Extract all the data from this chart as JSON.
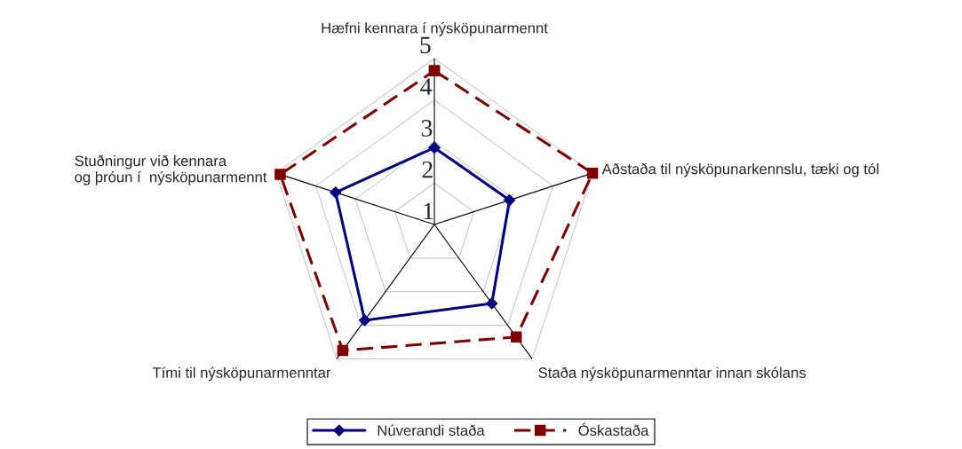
{
  "chart_data": {
    "type": "radar",
    "categories": [
      "Hæfni kennara í nýsköpunarmennt",
      "Aðstaða til nýsköpunarkennslu, tæki og tól",
      "Staða nýsköpunarmenntar innan skólans",
      "Tími til nýsköpunarmenntar",
      "Stuðningur við kennara\nog þróun í  nýsköpunarmennt"
    ],
    "series": [
      {
        "name": "Núverandi staða",
        "color": "#000080",
        "marker": "diamond",
        "line_style": "solid",
        "values": [
          2.85,
          2.9,
          3.35,
          3.85,
          3.5
        ]
      },
      {
        "name": "Óskastaða",
        "color": "#800000",
        "marker": "square",
        "line_style": "dashed",
        "values": [
          4.7,
          5,
          4.35,
          4.75,
          4.9
        ]
      }
    ],
    "ylim": [
      1,
      5
    ],
    "yticks": [
      1,
      2,
      3,
      4,
      5
    ],
    "grid": true,
    "legend": "bottom"
  }
}
